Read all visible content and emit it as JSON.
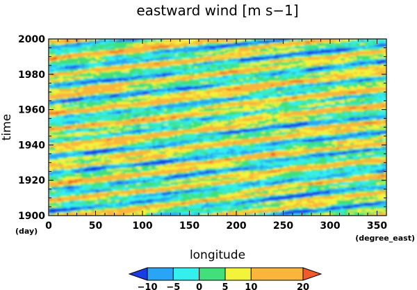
{
  "chart_data": {
    "type": "heatmap",
    "title": "eastward wind [m s−1]",
    "xlabel": "longitude",
    "xunit": "(degree_east)",
    "ylabel": "time",
    "yunit": "(day)",
    "xlim": [
      0,
      360
    ],
    "ylim": [
      1900,
      2000
    ],
    "x_ticks": [
      0,
      50,
      100,
      150,
      200,
      250,
      300,
      350
    ],
    "y_ticks": [
      1900,
      1920,
      1940,
      1960,
      1980,
      2000
    ],
    "colorbar": {
      "levels": [
        -10,
        -5,
        0,
        5,
        10,
        20
      ],
      "tick_labels": [
        "−10",
        "−5",
        "0",
        "5",
        "10",
        "20"
      ],
      "colors": [
        "#1a3ce6",
        "#2aa4f4",
        "#33f0ee",
        "#41e07a",
        "#f3f33a",
        "#f9b53c",
        "#f25a28"
      ],
      "extend": "both"
    },
    "pattern": {
      "description_kind": "eastward-propagating wind bands",
      "tilt_days_per_360_degrees": 24,
      "strong_bands_days": [
        1943,
        1957,
        1990
      ]
    }
  }
}
